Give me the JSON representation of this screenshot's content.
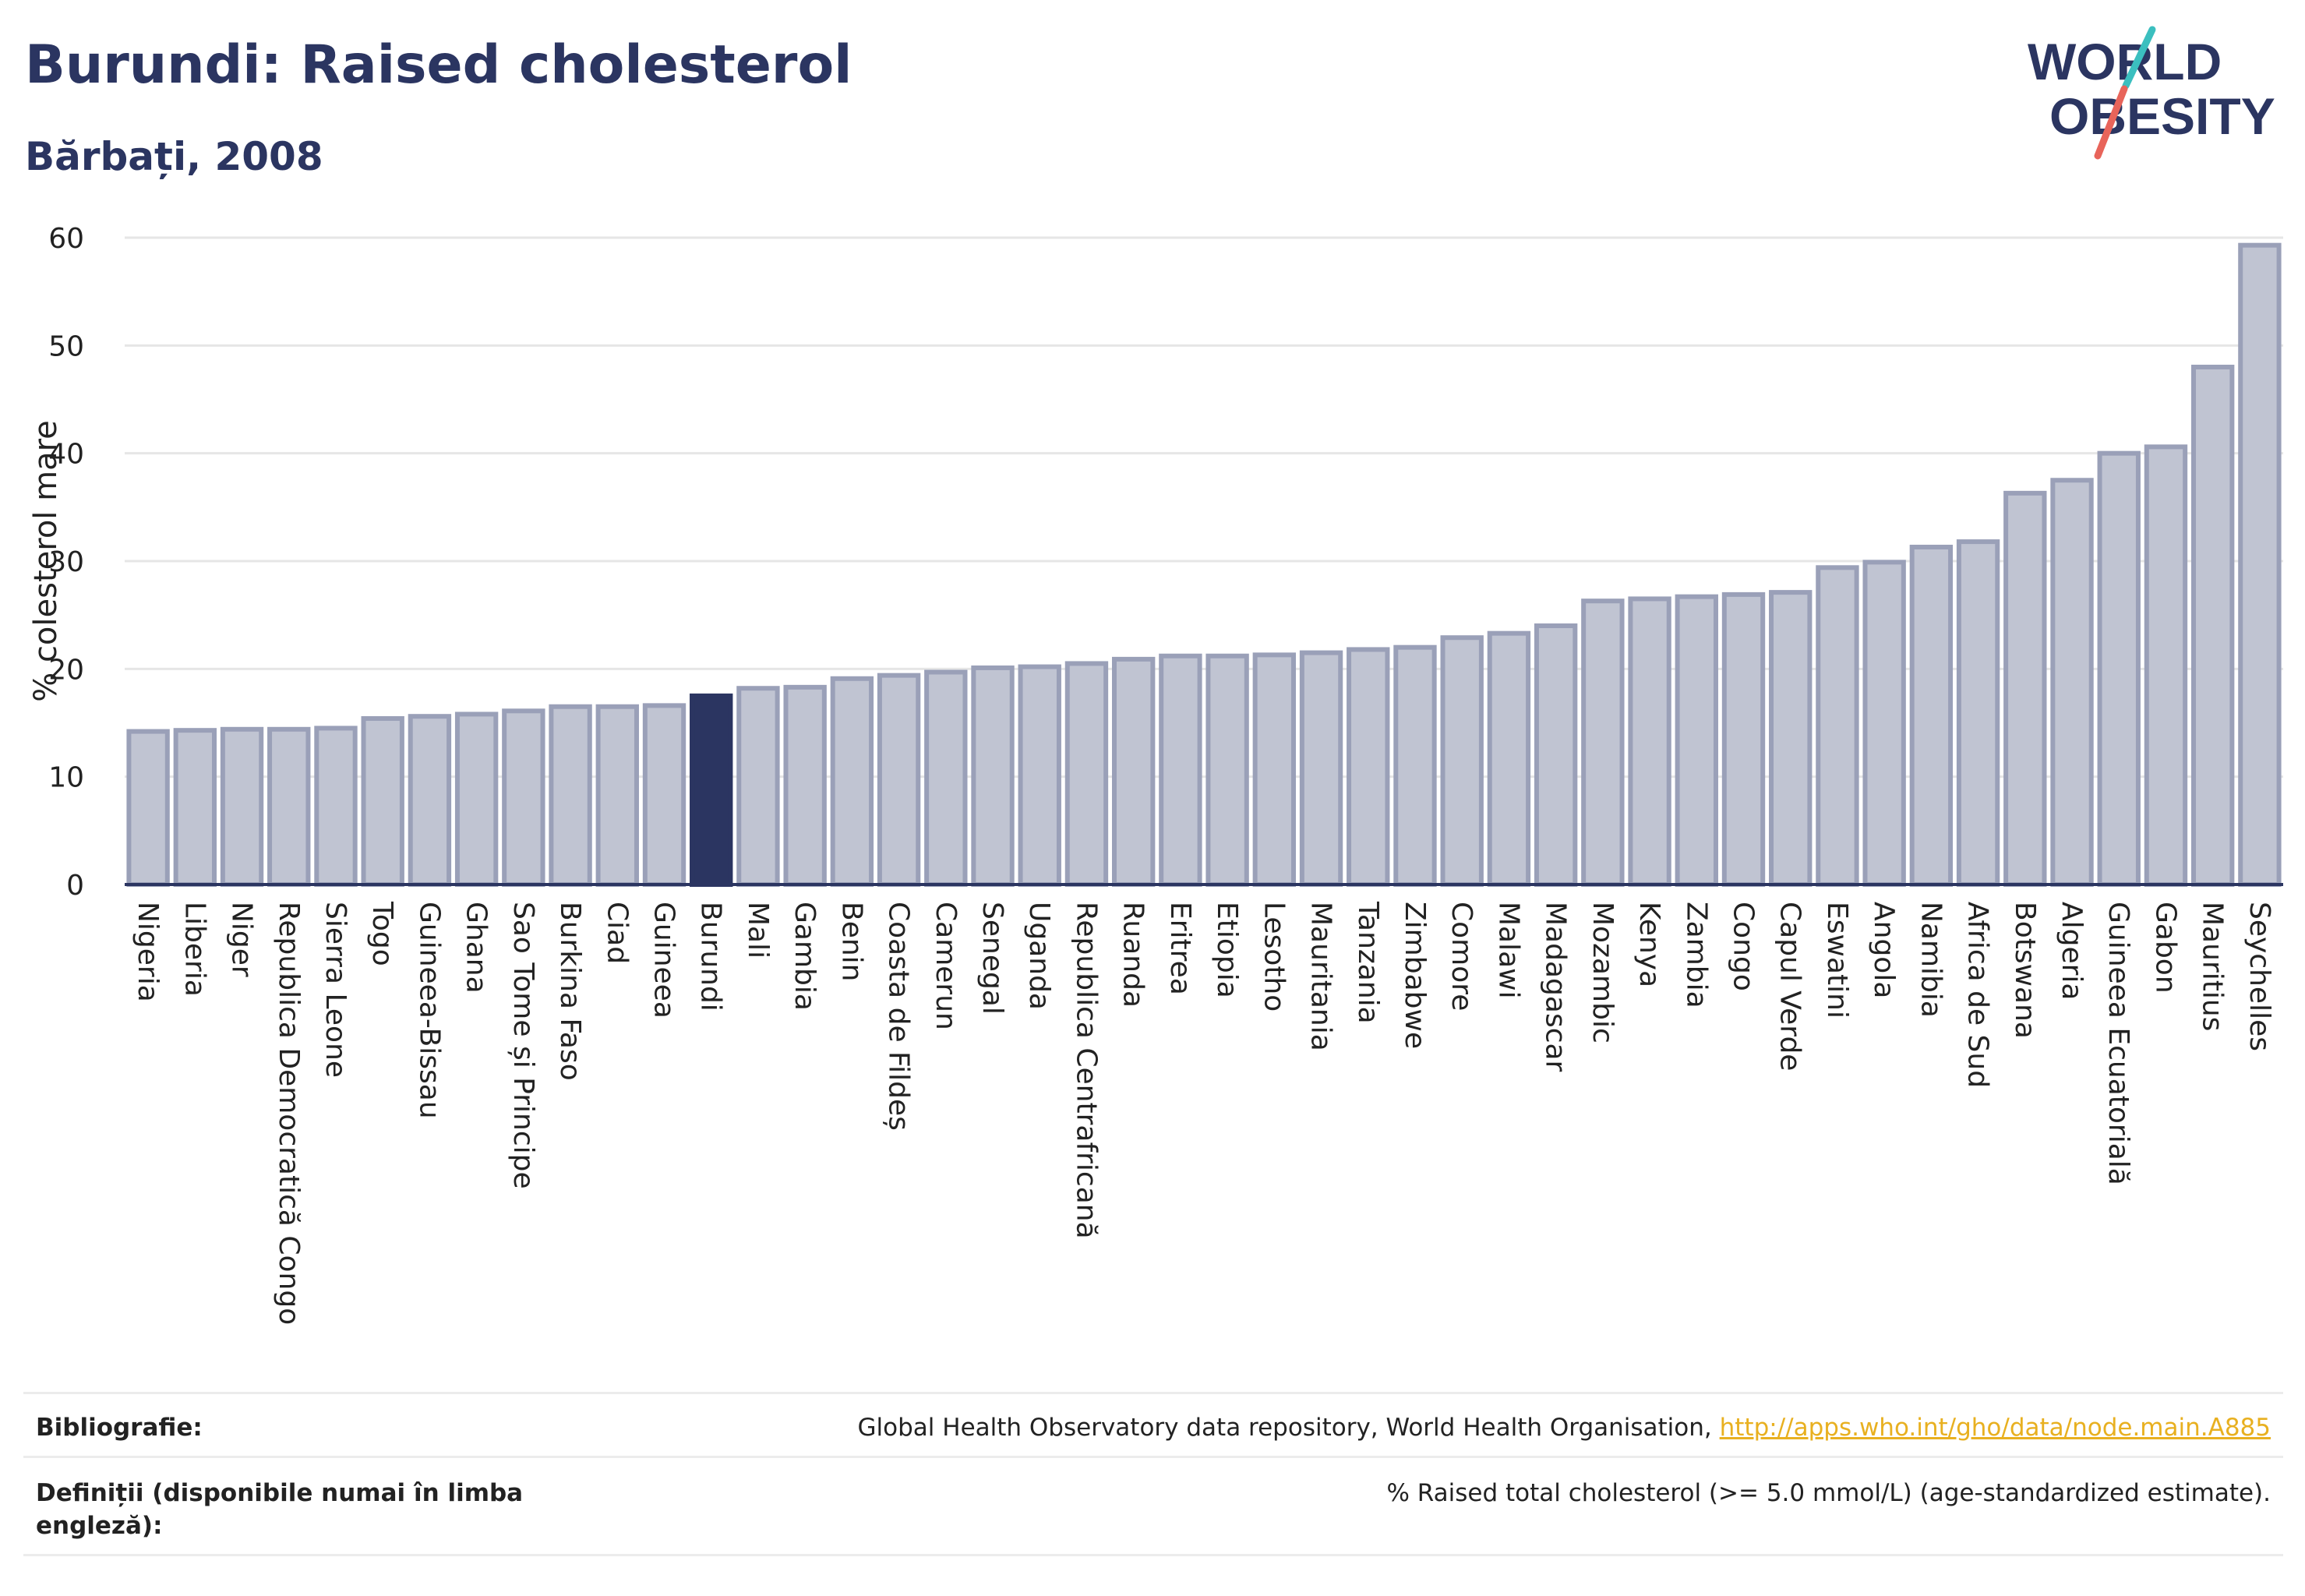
{
  "header": {
    "title": "Burundi: Raised cholesterol",
    "subtitle": "Bărbați, 2008"
  },
  "logo": {
    "line1": "WORLD",
    "line2": "OBESITY",
    "slash_colors": [
      "#3bbfbf",
      "#e8645a"
    ]
  },
  "colors": {
    "highlight_bar": "#2b3561",
    "bar_fill": "#c0c4d2",
    "bar_stroke": "#9aa0b8",
    "grid": "#e6e6e6",
    "title": "#2b3561"
  },
  "chart_data": {
    "type": "bar",
    "ylabel": "% colesterol mare",
    "xlabel": "",
    "ylim": [
      0,
      60
    ],
    "yticks": [
      0,
      10,
      20,
      30,
      40,
      50,
      60
    ],
    "grid": true,
    "highlight": "Burundi",
    "categories": [
      "Nigeria",
      "Liberia",
      "Niger",
      "Republica Democratică Congo",
      "Sierra Leone",
      "Togo",
      "Guineea-Bissau",
      "Ghana",
      "Sao Tome și Principe",
      "Burkina Faso",
      "Ciad",
      "Guineea",
      "Burundi",
      "Mali",
      "Gambia",
      "Benin",
      "Coasta de Fildeș",
      "Camerun",
      "Senegal",
      "Uganda",
      "Republica Centrafricană",
      "Ruanda",
      "Eritrea",
      "Etiopia",
      "Lesotho",
      "Mauritania",
      "Tanzania",
      "Zimbabwe",
      "Comore",
      "Malawi",
      "Madagascar",
      "Mozambic",
      "Kenya",
      "Zambia",
      "Congo",
      "Capul Verde",
      "Eswatini",
      "Angola",
      "Namibia",
      "Africa de Sud",
      "Botswana",
      "Algeria",
      "Guineea Ecuatorială",
      "Gabon",
      "Mauritius",
      "Seychelles"
    ],
    "values": [
      14.2,
      14.3,
      14.4,
      14.4,
      14.5,
      15.4,
      15.6,
      15.8,
      16.1,
      16.5,
      16.5,
      16.6,
      17.5,
      18.2,
      18.3,
      19.1,
      19.4,
      19.7,
      20.1,
      20.2,
      20.5,
      20.9,
      21.2,
      21.2,
      21.3,
      21.5,
      21.8,
      22.0,
      22.9,
      23.3,
      24.0,
      26.3,
      26.5,
      26.7,
      26.9,
      27.1,
      29.4,
      29.9,
      31.3,
      31.8,
      36.3,
      37.5,
      40.0,
      40.6,
      48.0,
      59.3
    ]
  },
  "footer": {
    "bibliography_label": "Bibliografie:",
    "bibliography_text": "Global Health Observatory data repository, World Health Organisation,",
    "bibliography_link": "http://apps.who.int/gho/data/node.main.A885",
    "definitions_label": "Definiții (disponibile numai în limba engleză):",
    "definitions_text": "% Raised total cholesterol (>= 5.0 mmol/L) (age-standardized estimate)."
  }
}
